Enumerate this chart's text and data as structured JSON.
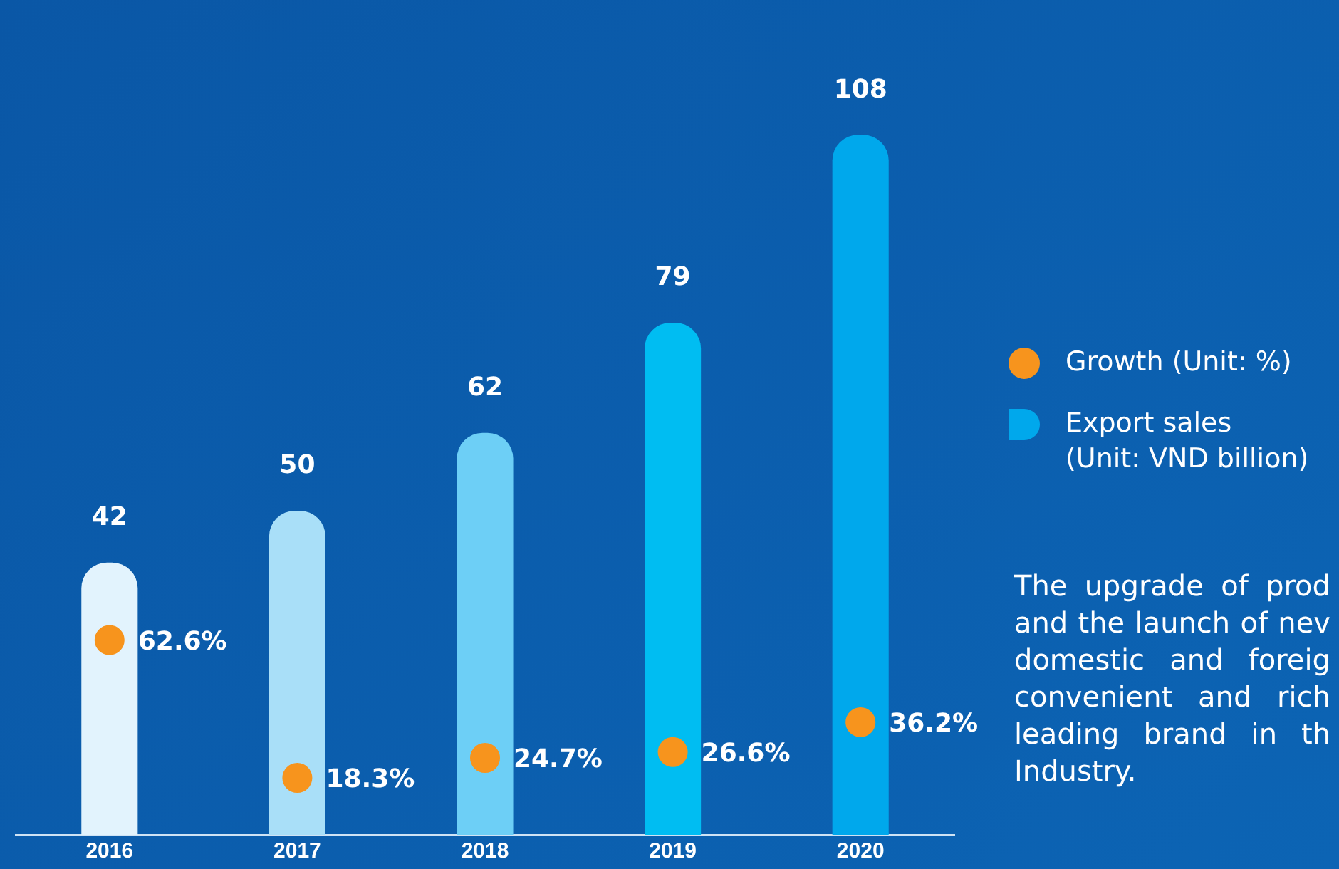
{
  "chart_data": {
    "type": "bar",
    "categories": [
      "2016",
      "2017",
      "2018",
      "2019",
      "2020"
    ],
    "series": [
      {
        "name": "Export sales\n(Unit: VND billion)",
        "colors": [
          "#e2f3fd",
          "#a9dff8",
          "#6dcff6",
          "#00bdf2",
          "#00a8ec"
        ],
        "color": "#00a8ec",
        "values": [
          42,
          50,
          62,
          79,
          108
        ]
      },
      {
        "name": "Growth (Unit: %)",
        "type": "scatter",
        "axis": "y2",
        "color": "#f7941d",
        "values": [
          62.6,
          18.3,
          24.7,
          26.6,
          36.2
        ],
        "value_labels": [
          "62.6%",
          "18.3%",
          "24.7%",
          "26.6%",
          "36.2%"
        ]
      }
    ],
    "data_labels": true,
    "legend": "right",
    "marker": "circle",
    "annotations": [
      "The upgrade of prod and the launch of nev domestic and foreig convenient and rich leading brand in th Industry."
    ]
  }
}
